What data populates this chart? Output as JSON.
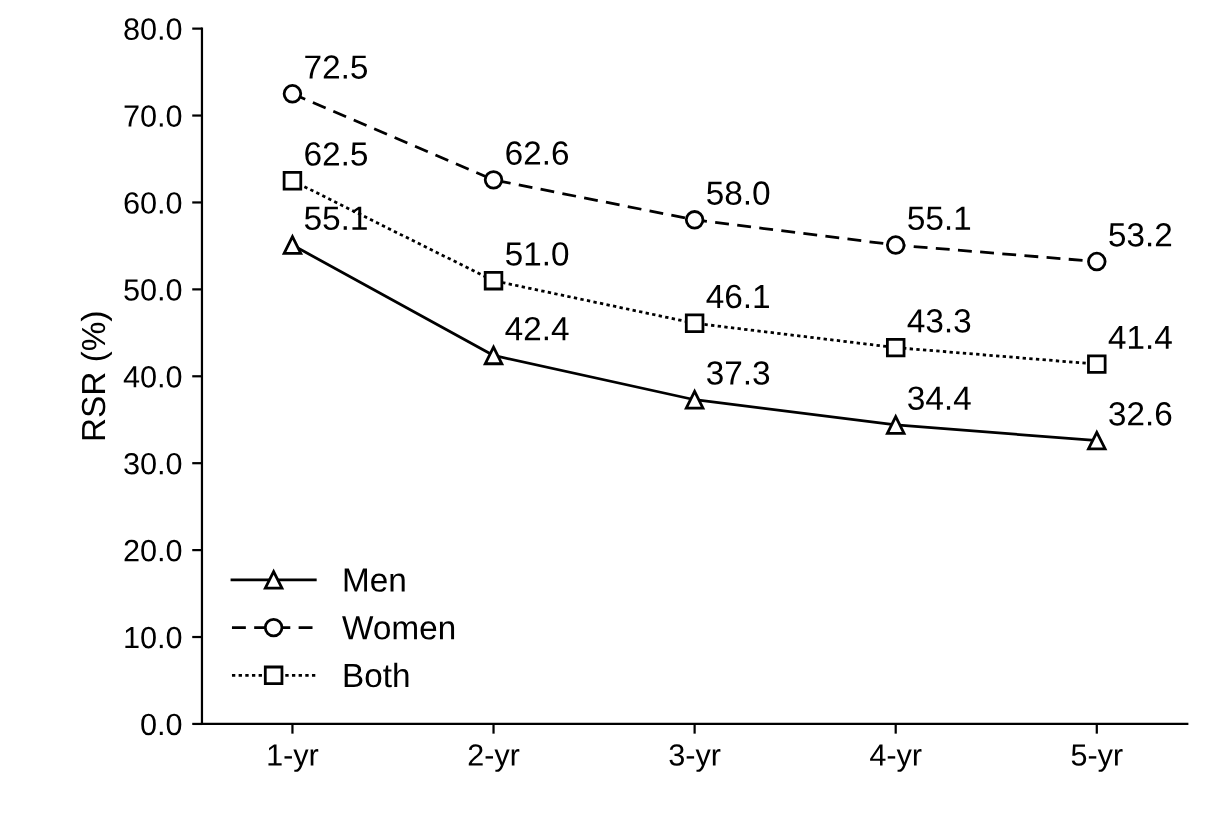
{
  "chart_data": {
    "type": "line",
    "ylabel": "RSR (%)",
    "categories": [
      "1-yr",
      "2-yr",
      "3-yr",
      "4-yr",
      "5-yr"
    ],
    "series": [
      {
        "name": "Men",
        "color": "#000000",
        "marker": "triangle",
        "line_style": "solid",
        "values": [
          55.1,
          42.4,
          37.3,
          34.4,
          32.6
        ],
        "value_labels": [
          "55.1",
          "42.4",
          "37.3",
          "34.4",
          "32.6"
        ]
      },
      {
        "name": "Women",
        "color": "#000000",
        "marker": "circle",
        "line_style": "dashed",
        "values": [
          72.5,
          62.6,
          58.0,
          55.1,
          53.2
        ],
        "value_labels": [
          "72.5",
          "62.6",
          "58.0",
          "55.1",
          "53.2"
        ]
      },
      {
        "name": "Both",
        "color": "#000000",
        "marker": "square",
        "line_style": "dotted",
        "values": [
          62.5,
          51.0,
          46.1,
          43.3,
          41.4
        ],
        "value_labels": [
          "62.5",
          "51.0",
          "46.1",
          "43.3",
          "41.4"
        ]
      }
    ],
    "ylim": [
      0,
      80
    ],
    "yticks": [
      {
        "value": 0,
        "label": "0.0"
      },
      {
        "value": 10,
        "label": "10.0"
      },
      {
        "value": 20,
        "label": "20.0"
      },
      {
        "value": 30,
        "label": "30.0"
      },
      {
        "value": 40,
        "label": "40.0"
      },
      {
        "value": 50,
        "label": "50.0"
      },
      {
        "value": 60,
        "label": "60.0"
      },
      {
        "value": 70,
        "label": "70.0"
      },
      {
        "value": 80,
        "label": "80.0"
      }
    ],
    "grid": false,
    "legend": "bottom left"
  }
}
